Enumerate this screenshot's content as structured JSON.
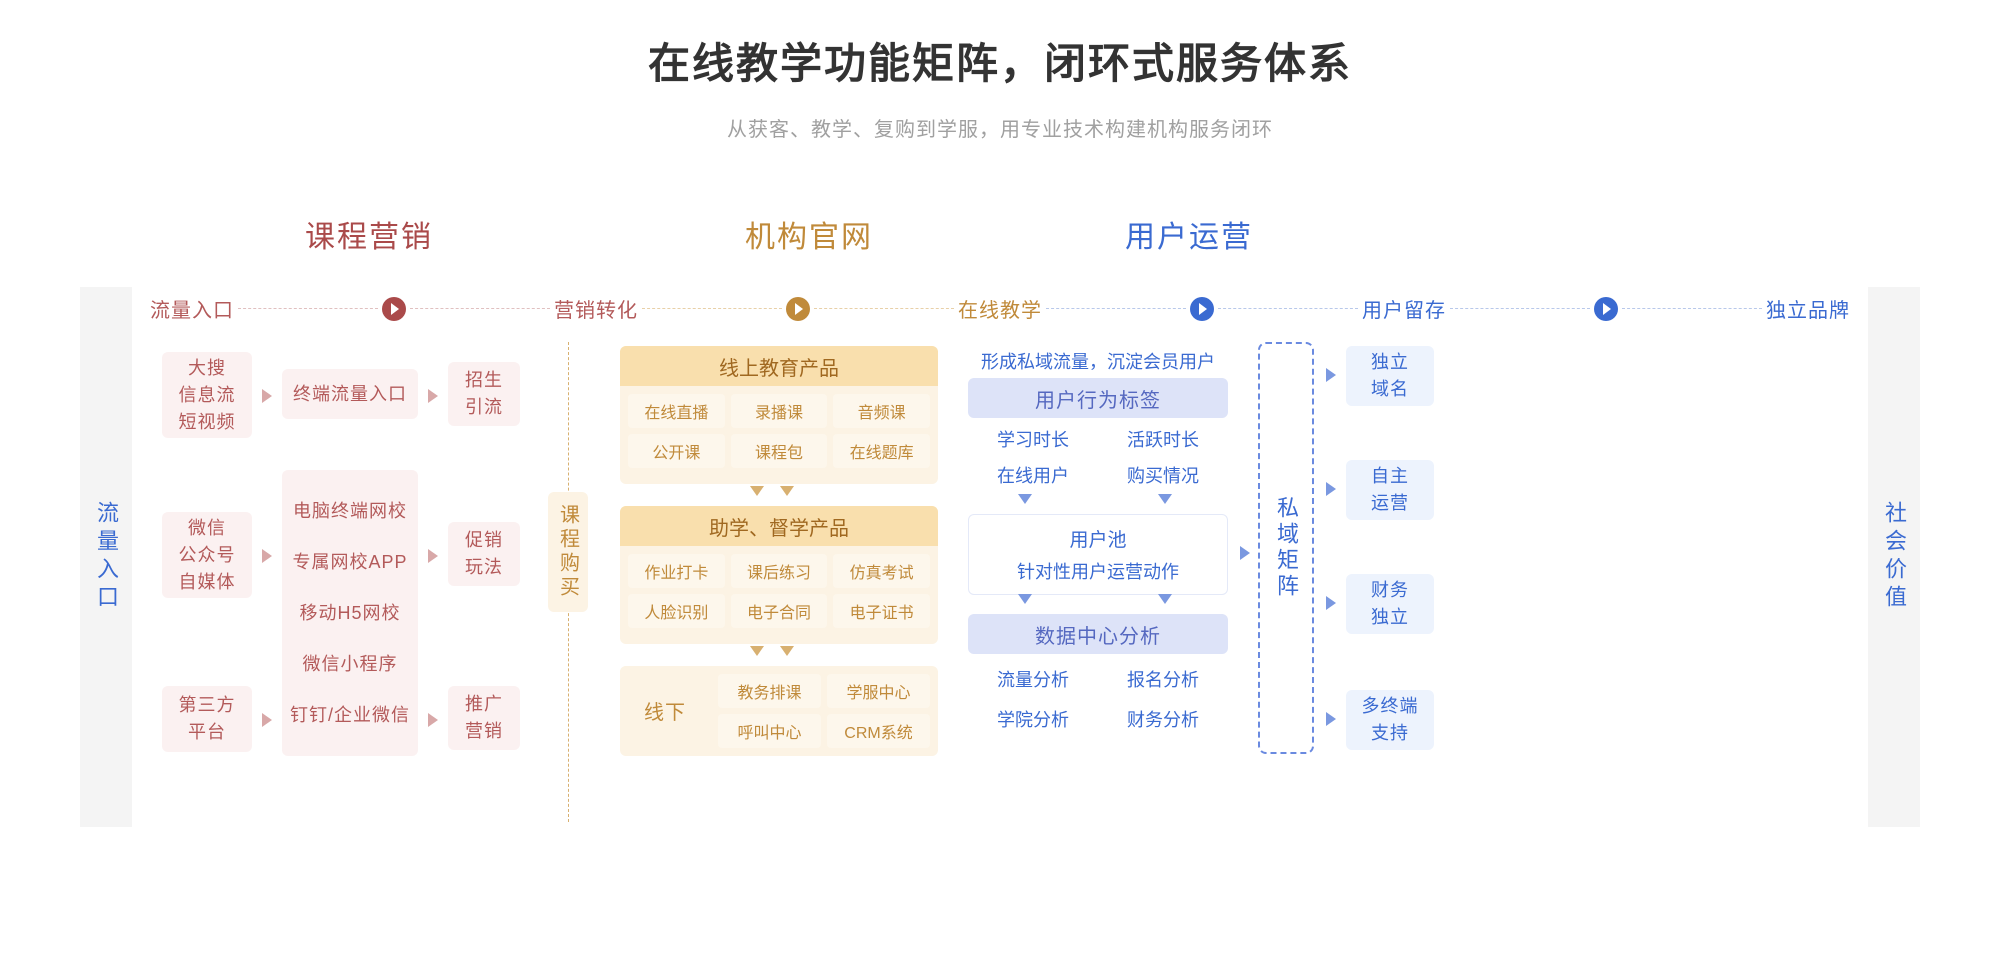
{
  "title": "在线教学功能矩阵，闭环式服务体系",
  "subtitle": "从获客、教学、复购到学服，用专业技术构建机构服务闭环",
  "sections": {
    "marketing": "课程营销",
    "official": "机构官网",
    "operation": "用户运营"
  },
  "stages": {
    "s1": "流量入口",
    "s2": "营销转化",
    "s3": "在线教学",
    "s4": "用户留存",
    "s5": "独立品牌"
  },
  "end_left": "流量入口",
  "end_right": "社会价值",
  "v_pill": "课程购买",
  "private_matrix": "私域矩阵",
  "marketing_col": {
    "src1": "大搜\n信息流\n短视频",
    "src2": "微信\n公众号\n自媒体",
    "src3": "第三方\n平台",
    "mid1": "终端流量入口",
    "mid2a": "电脑终端网校",
    "mid2b": "专属网校APP",
    "mid2c": "移动H5网校",
    "mid2d": "微信小程序",
    "mid2e": "钉钉/企业微信",
    "right1": "招生\n引流",
    "right2": "促销\n玩法",
    "right3": "推广\n营销"
  },
  "teaching": {
    "group1_title": "线上教育产品",
    "g1": [
      "在线直播",
      "录播课",
      "音频课",
      "公开课",
      "课程包",
      "在线题库"
    ],
    "group2_title": "助学、督学产品",
    "g2": [
      "作业打卡",
      "课后练习",
      "仿真考试",
      "人脸识别",
      "电子合同",
      "电子证书"
    ],
    "group3_title": "线下",
    "g3": [
      "教务排课",
      "学服中心",
      "呼叫中心",
      "CRM系统"
    ]
  },
  "retention": {
    "tagline": "形成私域流量，沉淀会员用户",
    "h1": "用户行为标签",
    "tags": [
      "学习时长",
      "活跃时长",
      "在线用户",
      "购买情况"
    ],
    "pool_title": "用户池",
    "pool_sub": "针对性用户运营动作",
    "h2": "数据中心分析",
    "analysis": [
      "流量分析",
      "报名分析",
      "学院分析",
      "财务分析"
    ]
  },
  "brand": {
    "b1": "独立\n域名",
    "b2": "自主\n运营",
    "b3": "财务\n独立",
    "b4": "多终端\n支持"
  },
  "colors": {
    "red": "#aa4a4a",
    "brown": "#c08a3a",
    "blue": "#3a6ad1",
    "pink_bg": "#fbf1f1",
    "ylw_bg": "#fcf3e4",
    "ylw_head": "#f9dfad",
    "vio_head": "#dde3f8",
    "blue_bg": "#edf3fd",
    "grey_bg": "#f4f4f4"
  }
}
